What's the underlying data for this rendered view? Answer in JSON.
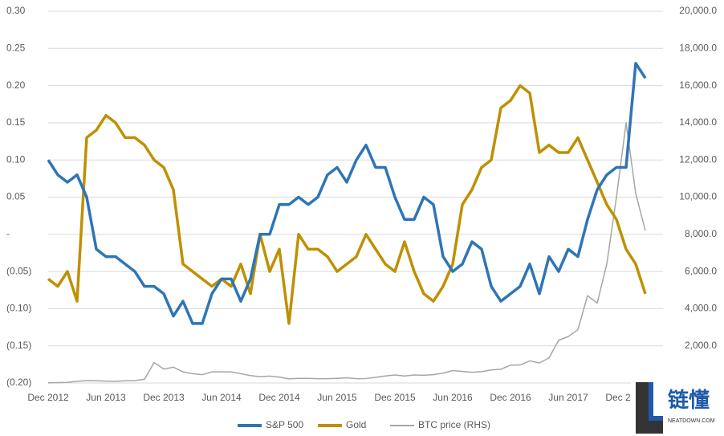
{
  "chart_data": {
    "type": "line",
    "categories": [
      "Dec 2012",
      null,
      null,
      null,
      null,
      null,
      "Jun 2013",
      null,
      null,
      null,
      null,
      null,
      "Dec 2013",
      null,
      null,
      null,
      null,
      null,
      "Jun 2014",
      null,
      null,
      null,
      null,
      null,
      "Dec 2014",
      null,
      null,
      null,
      null,
      null,
      "Jun 2015",
      null,
      null,
      null,
      null,
      null,
      "Dec 2015",
      null,
      null,
      null,
      null,
      null,
      "Jun 2016",
      null,
      null,
      null,
      null,
      null,
      "Dec 2016",
      null,
      null,
      null,
      null,
      null,
      "Jun 2017",
      null,
      null,
      null,
      null,
      null,
      "Dec 2017",
      null,
      null
    ],
    "series": [
      {
        "name": "S&P 500",
        "color": "#2e75b6",
        "values": [
          0.1,
          0.08,
          0.07,
          0.08,
          0.05,
          -0.02,
          -0.03,
          -0.03,
          -0.04,
          -0.05,
          -0.07,
          -0.07,
          -0.08,
          -0.11,
          -0.09,
          -0.12,
          -0.12,
          -0.08,
          -0.06,
          -0.06,
          -0.09,
          -0.06,
          0.0,
          0.0,
          0.04,
          0.04,
          0.05,
          0.04,
          0.05,
          0.08,
          0.09,
          0.07,
          0.1,
          0.12,
          0.09,
          0.09,
          0.05,
          0.02,
          0.02,
          0.05,
          0.04,
          -0.03,
          -0.05,
          -0.04,
          -0.01,
          -0.02,
          -0.07,
          -0.09,
          -0.08,
          -0.07,
          -0.04,
          -0.08,
          -0.03,
          -0.05,
          -0.02,
          -0.03,
          0.02,
          0.06,
          0.08,
          0.09,
          0.09,
          0.23,
          0.21
        ]
      },
      {
        "name": "Gold",
        "color": "#bf9000",
        "values": [
          -0.06,
          -0.07,
          -0.05,
          -0.09,
          0.13,
          0.14,
          0.16,
          0.15,
          0.13,
          0.13,
          0.12,
          0.1,
          0.09,
          0.06,
          -0.04,
          -0.05,
          -0.06,
          -0.07,
          -0.06,
          -0.07,
          -0.04,
          -0.08,
          0.0,
          -0.05,
          -0.02,
          -0.12,
          0.0,
          -0.02,
          -0.02,
          -0.03,
          -0.05,
          -0.04,
          -0.03,
          0.0,
          -0.02,
          -0.04,
          -0.05,
          -0.01,
          -0.05,
          -0.08,
          -0.09,
          -0.07,
          -0.04,
          0.04,
          0.06,
          0.09,
          0.1,
          0.17,
          0.18,
          0.2,
          0.19,
          0.11,
          0.12,
          0.11,
          0.11,
          0.13,
          0.1,
          0.07,
          0.04,
          0.02,
          -0.02,
          -0.04,
          -0.08
        ]
      },
      {
        "name": "BTC price (RHS)",
        "color": "#a6a6a6",
        "axis": "y2",
        "values": [
          13,
          20,
          30,
          90,
          130,
          120,
          100,
          90,
          120,
          130,
          200,
          1100,
          750,
          850,
          600,
          500,
          450,
          600,
          600,
          600,
          500,
          400,
          340,
          370,
          320,
          220,
          250,
          250,
          230,
          230,
          250,
          280,
          230,
          240,
          310,
          380,
          430,
          380,
          430,
          415,
          450,
          530,
          670,
          620,
          580,
          610,
          700,
          740,
          960,
          970,
          1190,
          1080,
          1350,
          2300,
          2500,
          2870,
          4700,
          4300,
          6400,
          10000,
          14000,
          10200,
          8200
        ]
      }
    ],
    "ylim": [
      -0.2,
      0.3
    ],
    "yticks": [
      {
        "value": -0.2,
        "label": "(0.20)"
      },
      {
        "value": -0.15,
        "label": "(0.15)"
      },
      {
        "value": -0.1,
        "label": "(0.10)"
      },
      {
        "value": -0.05,
        "label": "(0.05)"
      },
      {
        "value": 0,
        "label": "-"
      },
      0.05,
      {
        "value": 0.1,
        "label": "0.10"
      },
      0.15,
      {
        "value": 0.2,
        "label": "0.20"
      },
      0.25,
      {
        "value": 0.3,
        "label": "0.30"
      }
    ],
    "y2lim": [
      0,
      20000
    ],
    "y2ticks": [
      {
        "value": 2000,
        "label": "2,000.0"
      },
      {
        "value": 4000,
        "label": "4,000.0"
      },
      {
        "value": 6000,
        "label": "6,000.0"
      },
      {
        "value": 8000,
        "label": "8,000.0"
      },
      {
        "value": 10000,
        "label": "10,000.0"
      },
      {
        "value": 12000,
        "label": "12,000.0"
      },
      {
        "value": 14000,
        "label": "14,000.0"
      },
      {
        "value": 16000,
        "label": "16,000.0"
      },
      {
        "value": 18000,
        "label": "18,000.0"
      },
      {
        "value": 20000,
        "label": "20,000.0"
      }
    ],
    "grid": true,
    "legend": "bottom",
    "watermark": {
      "brand": "链懂",
      "site": "NEATDOWN.COM"
    }
  }
}
